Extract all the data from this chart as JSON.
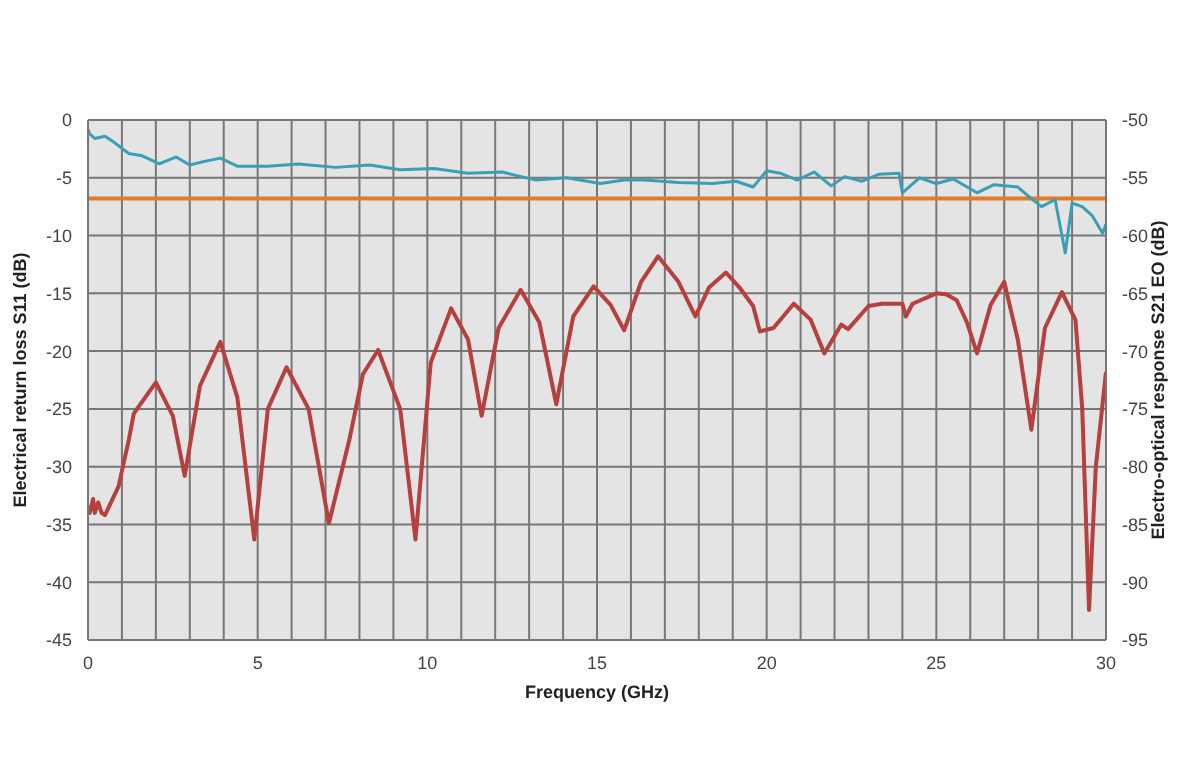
{
  "chart_data": {
    "type": "line",
    "xlabel": "Frequency (GHz)",
    "ylabel": "Electrical return loss S11 (dB)",
    "y2label": "Electro-optical response S21 EO (dB)",
    "xlim": [
      0,
      30
    ],
    "xticks": [
      0,
      {
        "value": 1,
        "label": null
      },
      {
        "value": 2,
        "label": null
      },
      {
        "value": 3,
        "label": null
      },
      {
        "value": 4,
        "label": null
      },
      5,
      {
        "value": 6,
        "label": null
      },
      {
        "value": 7,
        "label": null
      },
      {
        "value": 8,
        "label": null
      },
      {
        "value": 9,
        "label": null
      },
      10,
      {
        "value": 11,
        "label": null
      },
      {
        "value": 12,
        "label": null
      },
      {
        "value": 13,
        "label": null
      },
      {
        "value": 14,
        "label": null
      },
      15,
      {
        "value": 16,
        "label": null
      },
      {
        "value": 17,
        "label": null
      },
      {
        "value": 18,
        "label": null
      },
      {
        "value": 19,
        "label": null
      },
      20,
      {
        "value": 21,
        "label": null
      },
      {
        "value": 22,
        "label": null
      },
      {
        "value": 23,
        "label": null
      },
      {
        "value": 24,
        "label": null
      },
      25,
      {
        "value": 26,
        "label": null
      },
      {
        "value": 27,
        "label": null
      },
      {
        "value": 28,
        "label": null
      },
      {
        "value": 29,
        "label": null
      },
      30
    ],
    "ylim": [
      -45,
      0
    ],
    "yticks": [
      -45,
      -40,
      -35,
      -30,
      -25,
      -20,
      -15,
      -10,
      -5,
      0
    ],
    "y2lim": [
      -95,
      -50
    ],
    "y2ticks": [
      -95,
      -90,
      -85,
      -80,
      -75,
      -70,
      -65,
      -60,
      -55,
      -50
    ],
    "grid": true,
    "legend": false,
    "marker": "none",
    "line_style": "solid",
    "ref_lines": [
      {
        "axis": "y",
        "value": -6.8,
        "color": "#e07b2a"
      }
    ],
    "series": [
      {
        "color": "#b5403e",
        "x": [
          0,
          0.05,
          0.15,
          0.2,
          0.3,
          0.4,
          0.5,
          0.9,
          1.2,
          1.35,
          2.0,
          2.5,
          2.85,
          3.3,
          3.9,
          4.4,
          4.9,
          5.3,
          5.85,
          6.5,
          7.1,
          7.7,
          8.1,
          8.55,
          9.2,
          9.65,
          10.1,
          10.7,
          11.2,
          11.6,
          12.1,
          12.75,
          13.3,
          13.8,
          14.3,
          14.9,
          15.4,
          15.8,
          16.3,
          16.8,
          17.4,
          17.9,
          18.3,
          18.8,
          19.2,
          19.6,
          19.8,
          20.2,
          20.8,
          21.3,
          21.7,
          22.2,
          22.4,
          23.0,
          23.4,
          24.0,
          24.1,
          24.3,
          25.0,
          25.3,
          25.6,
          25.9,
          26.2,
          26.6,
          27.0,
          27.4,
          27.8,
          28.2,
          28.7,
          29.1,
          29.3,
          29.5,
          29.7,
          30
        ],
        "values": [
          -34,
          -34,
          -32.8,
          -34,
          -33.1,
          -34,
          -34.2,
          -31.7,
          -27.7,
          -25.4,
          -22.7,
          -25.6,
          -30.8,
          -23,
          -19.2,
          -24,
          -36.3,
          -25,
          -21.4,
          -25,
          -34.9,
          -27.7,
          -22,
          -19.9,
          -25,
          -36.3,
          -21,
          -16.3,
          -19,
          -25.6,
          -18,
          -14.7,
          -17.5,
          -24.6,
          -17,
          -14.4,
          -16,
          -18.2,
          -14,
          -11.8,
          -14,
          -17,
          -14.5,
          -13.2,
          -14.5,
          -16.1,
          -18.3,
          -18,
          -15.9,
          -17.3,
          -20.2,
          -17.7,
          -18.1,
          -16.1,
          -15.9,
          -15.9,
          -17,
          -15.9,
          -15,
          -15.1,
          -15.6,
          -17.5,
          -20.2,
          -16,
          -14,
          -19,
          -26.8,
          -18,
          -14.9,
          -17.3,
          -25,
          -42.4,
          -30,
          -21.8
        ]
      },
      {
        "color": "#3a9fb5",
        "axis": "y2",
        "x": [
          0,
          0.05,
          0.2,
          0.5,
          0.8,
          1.2,
          1.6,
          2.1,
          2.6,
          3.0,
          3.4,
          3.9,
          4.4,
          5.3,
          6.2,
          7.3,
          8.3,
          9.2,
          10.2,
          11.2,
          12.2,
          13.2,
          14.1,
          15.1,
          15.8,
          16.4,
          17.4,
          18.4,
          19.1,
          19.6,
          20.0,
          20.4,
          20.9,
          21.4,
          21.9,
          22.3,
          22.8,
          23.3,
          23.9,
          24.0,
          24.5,
          25.0,
          25.5,
          26.2,
          26.7,
          27.4,
          27.8,
          28.1,
          28.5,
          28.8,
          29.0,
          29.3,
          29.6,
          29.9,
          30
        ],
        "values": [
          -50.8,
          -51.2,
          -51.6,
          -51.4,
          -52,
          -52.9,
          -53.1,
          -53.8,
          -53.2,
          -53.9,
          -53.6,
          -53.3,
          -54,
          -54,
          -53.8,
          -54.1,
          -53.9,
          -54.3,
          -54.2,
          -54.6,
          -54.5,
          -55.2,
          -55,
          -55.5,
          -55.2,
          -55.2,
          -55.4,
          -55.5,
          -55.3,
          -55.8,
          -54.4,
          -54.6,
          -55.2,
          -54.5,
          -55.7,
          -54.9,
          -55.3,
          -54.7,
          -54.6,
          -56.3,
          -55,
          -55.5,
          -55.1,
          -56.3,
          -55.6,
          -55.8,
          -56.8,
          -57.5,
          -56.9,
          -61.5,
          -57.2,
          -57.5,
          -58.3,
          -59.8,
          -59
        ]
      }
    ]
  }
}
